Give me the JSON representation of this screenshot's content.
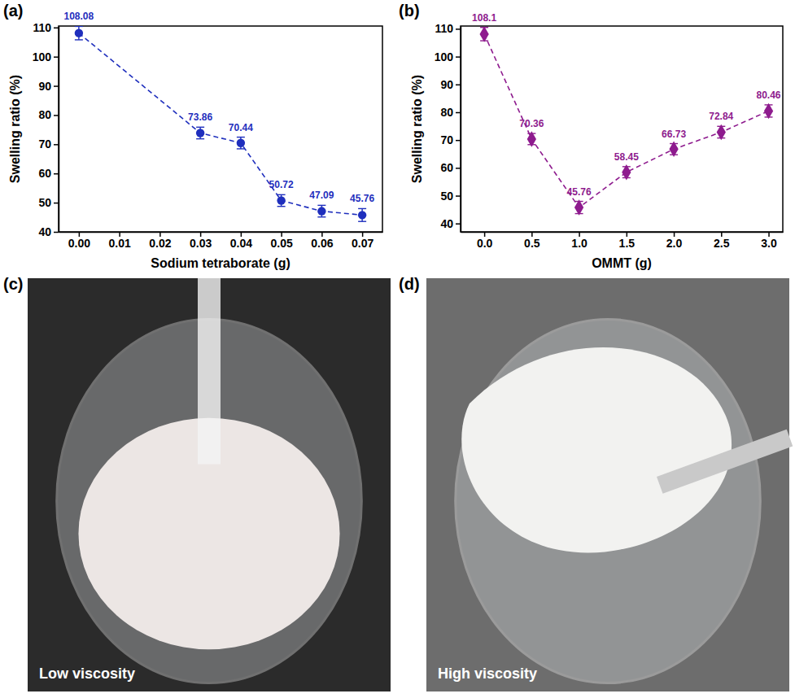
{
  "chart_data": [
    {
      "type": "line",
      "panel": "(a)",
      "x_label": "Sodium tetraborate (g)",
      "y_label": "Swelling ratio (%)",
      "x": [
        0,
        0.03,
        0.04,
        0.05,
        0.06,
        0.07
      ],
      "values": [
        108.08,
        73.86,
        70.44,
        50.72,
        47.09,
        45.76
      ],
      "errors": [
        2.3,
        2.0,
        2.0,
        2.0,
        2.0,
        2.2
      ],
      "color": "#1f2fbd",
      "marker": "circle",
      "line_style": "dashed",
      "data_labels": true,
      "grid": false,
      "xlim": [
        -0.005,
        0.075
      ],
      "xticks": [
        {
          "value": 0,
          "label": "0.00"
        },
        {
          "value": 0.01,
          "label": "0.01"
        },
        {
          "value": 0.02,
          "label": "0.02"
        },
        {
          "value": 0.03,
          "label": "0.03"
        },
        {
          "value": 0.04,
          "label": "0.04"
        },
        {
          "value": 0.05,
          "label": "0.05"
        },
        {
          "value": 0.06,
          "label": "0.06"
        },
        {
          "value": 0.07,
          "label": "0.07"
        }
      ],
      "ylim": [
        40,
        110.5
      ],
      "yticks": [
        40,
        50,
        60,
        70,
        80,
        90,
        100,
        110
      ]
    },
    {
      "type": "line",
      "panel": "(b)",
      "x_label": "OMMT (g)",
      "y_label": "Swelling ratio (%)",
      "x": [
        0,
        0.5,
        1.0,
        1.5,
        2.0,
        2.5,
        3.0
      ],
      "values": [
        108.1,
        70.36,
        45.76,
        58.45,
        66.73,
        72.84,
        80.46
      ],
      "errors": [
        2.4,
        2.0,
        2.2,
        2.0,
        2.0,
        2.1,
        2.2
      ],
      "color": "#8e1b8e",
      "marker": "diamond",
      "line_style": "dashed",
      "data_labels": true,
      "grid": false,
      "xlim": [
        -0.25,
        3.15
      ],
      "xticks": [
        {
          "value": 0,
          "label": "0.0"
        },
        {
          "value": 0.5,
          "label": "0.5"
        },
        {
          "value": 1.0,
          "label": "1.0"
        },
        {
          "value": 1.5,
          "label": "1.5"
        },
        {
          "value": 2.0,
          "label": "2.0"
        },
        {
          "value": 2.5,
          "label": "2.5"
        },
        {
          "value": 3.0,
          "label": "3.0"
        }
      ],
      "ylim": [
        37,
        111
      ],
      "yticks": [
        40,
        50,
        60,
        70,
        80,
        90,
        100,
        110
      ]
    }
  ],
  "photos": [
    {
      "label": "(c)",
      "caption": "Low viscosity"
    },
    {
      "label": "(d)",
      "caption": "High viscosity"
    }
  ]
}
